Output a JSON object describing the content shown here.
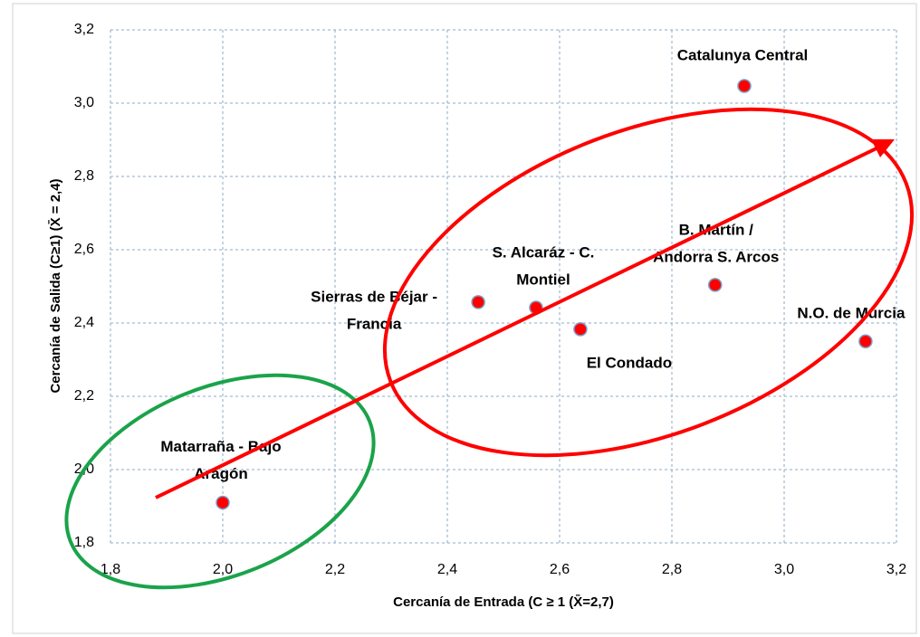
{
  "chart_data": {
    "type": "scatter",
    "x_label": "Cercanía de Entrada (C ≥ 1 (X̄=2,7)",
    "y_label": "Cercanía de Salida (C≥1) (X̄ = 2,4)",
    "series": [
      {
        "name": null,
        "color": "#ff0000",
        "x": [
          2.0,
          2.455,
          2.558,
          2.637,
          2.877,
          2.929,
          3.145
        ],
        "values": [
          1.91,
          2.457,
          2.442,
          2.383,
          2.504,
          3.047,
          2.35
        ],
        "labels": [
          [
            "Matarraña - Bajo",
            "Aragón"
          ],
          [
            "Sierras de Béjar -",
            "Francia"
          ],
          [
            "S. Alcaráz - C.",
            "Montiel"
          ],
          [
            "El Condado"
          ],
          [
            "B. Martín /",
            "Andorra S. Arcos"
          ],
          [
            "Catalunya Central"
          ],
          [
            "N.O. de Murcia"
          ]
        ]
      }
    ],
    "xlim": [
      1.8,
      3.2
    ],
    "ylim": [
      1.8,
      3.2
    ],
    "xticks": [
      {
        "value": 1.8,
        "label": "1,8"
      },
      {
        "value": 2.0,
        "label": "2,0"
      },
      {
        "value": 2.2,
        "label": "2,2"
      },
      {
        "value": 2.4,
        "label": "2,4"
      },
      {
        "value": 2.6,
        "label": "2,6"
      },
      {
        "value": 2.8,
        "label": "2,8"
      },
      {
        "value": 3.0,
        "label": "3,0"
      },
      {
        "value": 3.2,
        "label": "3,2"
      }
    ],
    "yticks": [
      {
        "value": 1.8,
        "label": "1,8"
      },
      {
        "value": 2.0,
        "label": "2,0"
      },
      {
        "value": 2.2,
        "label": "2,2"
      },
      {
        "value": 2.4,
        "label": "2,4"
      },
      {
        "value": 2.6,
        "label": "2,6"
      },
      {
        "value": 2.8,
        "label": "2,8"
      },
      {
        "value": 3.0,
        "label": "3,0"
      },
      {
        "value": 3.2,
        "label": "3,2"
      }
    ],
    "grid": true
  }
}
